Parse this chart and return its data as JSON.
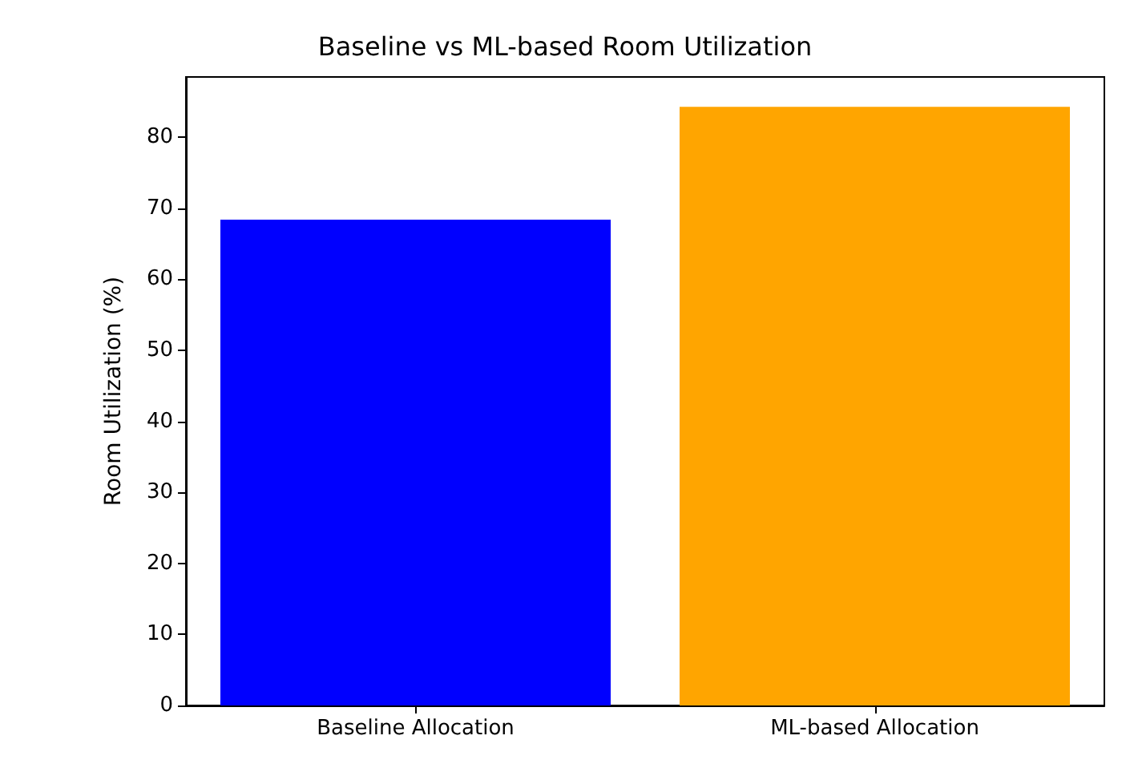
{
  "chart_data": {
    "type": "bar",
    "title": "Baseline vs ML-based Room Utilization",
    "ylabel": "Room Utilization (%)",
    "categories": [
      "Baseline Allocation",
      "ML-based Allocation"
    ],
    "values": [
      68.4,
      84.3
    ],
    "colors": [
      "#0000ff",
      "#ffa500"
    ],
    "ylim": [
      0,
      88.5
    ],
    "yticks": [
      0,
      10,
      20,
      30,
      40,
      50,
      60,
      70,
      80
    ],
    "grid": false
  }
}
